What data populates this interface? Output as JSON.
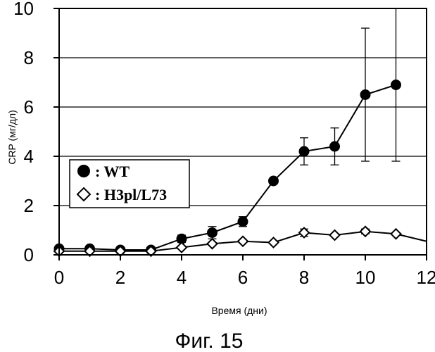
{
  "chart_data": {
    "type": "line",
    "xlabel": "Время (дни)",
    "ylabel": "CRP (мг/дл)",
    "caption": "Фиг. 15",
    "xlim": [
      0,
      12
    ],
    "ylim": [
      0,
      10
    ],
    "xticks": [
      "0",
      "2",
      "4",
      "6",
      "8",
      "10",
      "12"
    ],
    "yticks": [
      "0",
      "2",
      "4",
      "6",
      "8",
      "10"
    ],
    "grid": "horizontal",
    "legend_position": "center-left",
    "series": [
      {
        "name": "WT",
        "legend_label": ": WT",
        "marker": "filled-circle",
        "color": "#000000",
        "x": [
          0,
          1,
          2,
          3,
          4,
          5,
          6,
          7,
          8,
          9,
          10,
          11
        ],
        "y": [
          0.25,
          0.25,
          0.2,
          0.2,
          0.65,
          0.9,
          1.35,
          3.0,
          4.2,
          4.4,
          6.5,
          6.9
        ],
        "error": [
          0,
          0,
          0,
          0,
          0.15,
          0.25,
          0.2,
          0,
          0.55,
          0.75,
          2.7,
          3.1
        ]
      },
      {
        "name": "H3pl/L73",
        "legend_label": ": H3pl/L73",
        "marker": "open-diamond",
        "color": "#000000",
        "x": [
          0,
          1,
          2,
          3,
          4,
          5,
          6,
          7,
          8,
          9,
          10,
          11
        ],
        "y": [
          0.15,
          0.15,
          0.15,
          0.15,
          0.3,
          0.45,
          0.55,
          0.5,
          0.9,
          0.8,
          0.95,
          0.85
        ],
        "error": [
          0,
          0,
          0,
          0,
          0,
          0,
          0,
          0,
          0.15,
          0,
          0.1,
          0
        ]
      }
    ]
  }
}
